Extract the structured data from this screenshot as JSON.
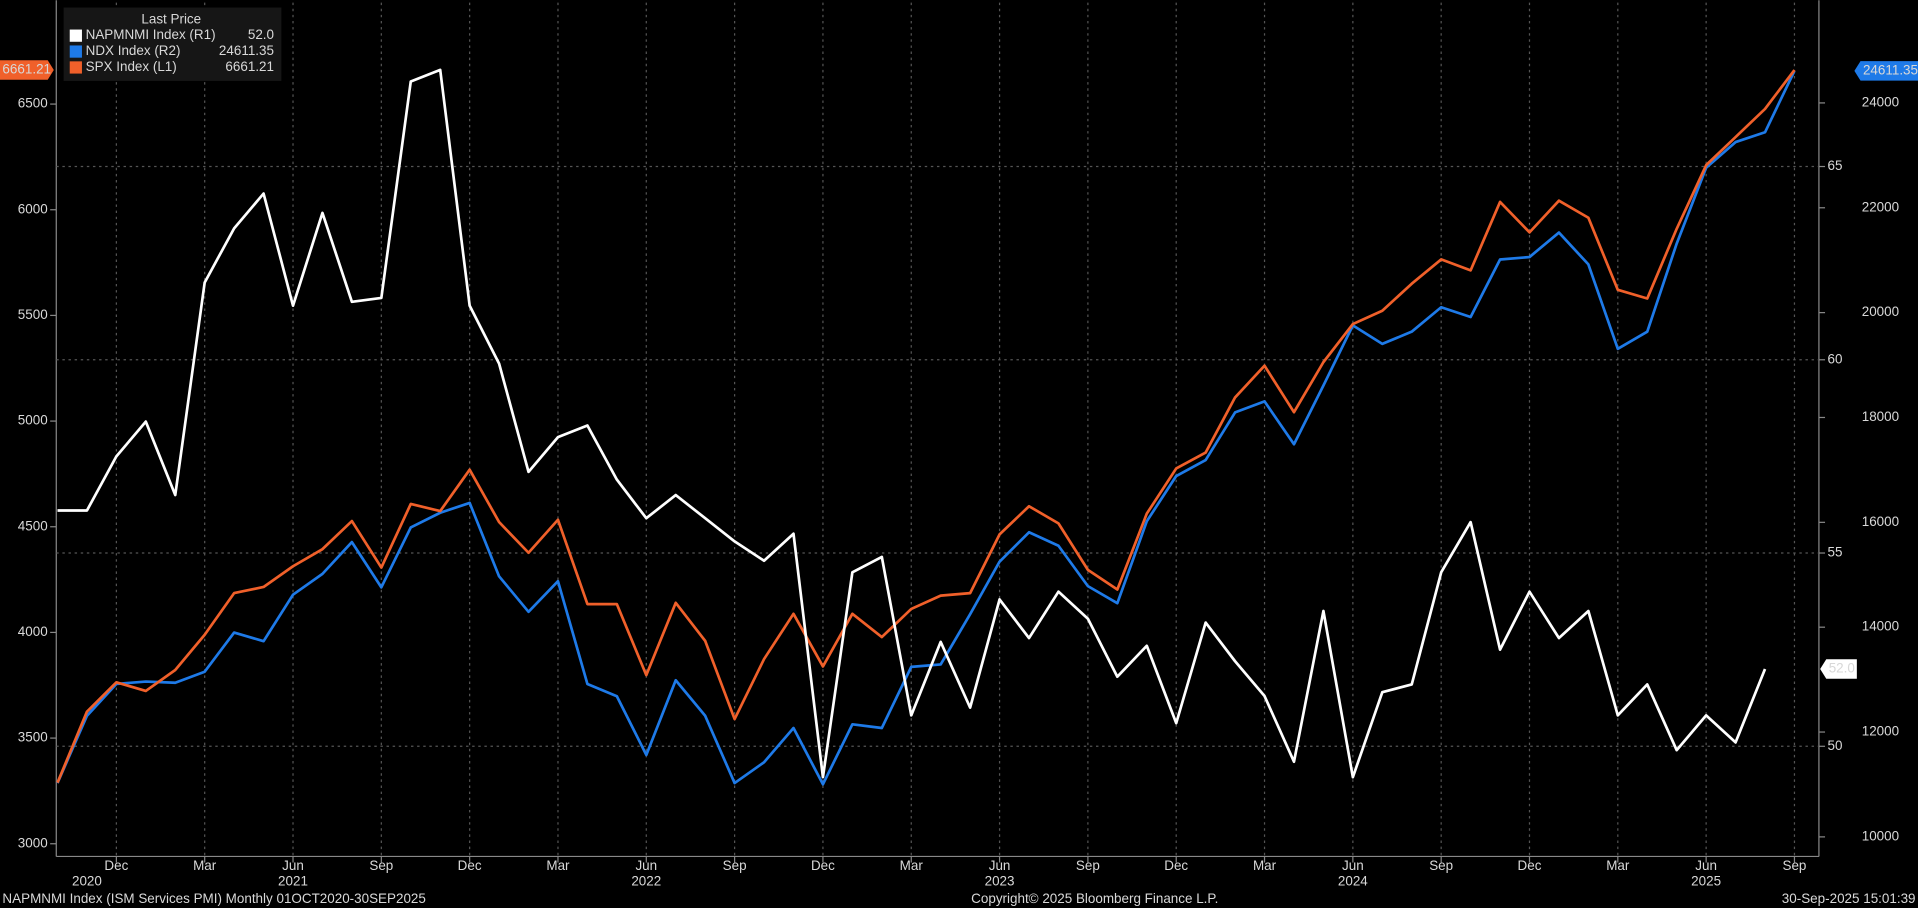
{
  "chart_data": {
    "type": "line",
    "legend_title": "Last Price",
    "footer_left": "NAPMNMI Index (ISM Services PMI)  Monthly 01OCT2020-30SEP2025",
    "footer_center": "Copyright© 2025 Bloomberg Finance L.P.",
    "footer_right": "30-Sep-2025 15:01:39",
    "x": [
      "2020-10",
      "2020-11",
      "2020-12",
      "2021-01",
      "2021-02",
      "2021-03",
      "2021-04",
      "2021-05",
      "2021-06",
      "2021-07",
      "2021-08",
      "2021-09",
      "2021-10",
      "2021-11",
      "2021-12",
      "2022-01",
      "2022-02",
      "2022-03",
      "2022-04",
      "2022-05",
      "2022-06",
      "2022-07",
      "2022-08",
      "2022-09",
      "2022-10",
      "2022-11",
      "2022-12",
      "2023-01",
      "2023-02",
      "2023-03",
      "2023-04",
      "2023-05",
      "2023-06",
      "2023-07",
      "2023-08",
      "2023-09",
      "2023-10",
      "2023-11",
      "2023-12",
      "2024-01",
      "2024-02",
      "2024-03",
      "2024-04",
      "2024-05",
      "2024-06",
      "2024-07",
      "2024-08",
      "2024-09",
      "2024-10",
      "2024-11",
      "2024-12",
      "2025-01",
      "2025-02",
      "2025-03",
      "2025-04",
      "2025-05",
      "2025-06",
      "2025-07",
      "2025-08",
      "2025-09"
    ],
    "xticks": [
      {
        "value": "2020-12",
        "label": "Dec"
      },
      {
        "value": "2021-03",
        "label": "Mar"
      },
      {
        "value": "2021-06",
        "label": "Jun"
      },
      {
        "value": "2021-09",
        "label": "Sep"
      },
      {
        "value": "2021-12",
        "label": "Dec"
      },
      {
        "value": "2022-03",
        "label": "Mar"
      },
      {
        "value": "2022-06",
        "label": "Jun"
      },
      {
        "value": "2022-09",
        "label": "Sep"
      },
      {
        "value": "2022-12",
        "label": "Dec"
      },
      {
        "value": "2023-03",
        "label": "Mar"
      },
      {
        "value": "2023-06",
        "label": "Jun"
      },
      {
        "value": "2023-09",
        "label": "Sep"
      },
      {
        "value": "2023-12",
        "label": "Dec"
      },
      {
        "value": "2024-03",
        "label": "Mar"
      },
      {
        "value": "2024-06",
        "label": "Jun"
      },
      {
        "value": "2024-09",
        "label": "Sep"
      },
      {
        "value": "2024-12",
        "label": "Dec"
      },
      {
        "value": "2025-03",
        "label": "Mar"
      },
      {
        "value": "2025-06",
        "label": "Jun"
      },
      {
        "value": "2025-09",
        "label": "Sep"
      }
    ],
    "xyears": [
      {
        "value": "2020-11",
        "label": "2020"
      },
      {
        "value": "2021-06",
        "label": "2021"
      },
      {
        "value": "2022-06",
        "label": "2022"
      },
      {
        "value": "2023-06",
        "label": "2023"
      },
      {
        "value": "2024-06",
        "label": "2024"
      },
      {
        "value": "2025-06",
        "label": "2025"
      }
    ],
    "ylim": [
      2940,
      6980
    ],
    "yticks": [
      3000,
      3500,
      4000,
      4500,
      5000,
      5500,
      6000,
      6500
    ],
    "y2lim": [
      9627,
      25913
    ],
    "y2ticks": [
      10000,
      12000,
      14000,
      16000,
      18000,
      20000,
      22000,
      24000
    ],
    "y3lim": [
      47.15,
      69.24
    ],
    "y3ticks": [
      50,
      55,
      60,
      65
    ],
    "grid": true,
    "series": [
      {
        "name": "NAPMNMI Index (R1)",
        "color": "#ffffff",
        "axis": "y3",
        "last_label": "52.0",
        "values": [
          56.1,
          56.1,
          57.5,
          58.4,
          56.5,
          62.0,
          63.4,
          64.3,
          61.4,
          63.8,
          61.5,
          61.6,
          67.2,
          67.5,
          61.4,
          59.9,
          57.1,
          58.0,
          58.3,
          56.9,
          55.9,
          56.5,
          55.9,
          55.3,
          54.8,
          55.5,
          49.2,
          54.5,
          54.9,
          50.8,
          52.7,
          51.0,
          53.8,
          52.8,
          54.0,
          53.3,
          51.8,
          52.6,
          50.6,
          53.2,
          52.2,
          51.3,
          49.6,
          53.5,
          49.2,
          51.4,
          51.6,
          54.5,
          55.8,
          52.5,
          54.0,
          52.8,
          53.5,
          50.8,
          51.6,
          49.9,
          50.8,
          50.1,
          52.0,
          null
        ]
      },
      {
        "name": "NDX Index (R2)",
        "color": "#1e7ae8",
        "axis": "y2",
        "last_label": "24611.35",
        "values": [
          11027,
          12310,
          12917,
          12963,
          12940,
          13150,
          13897,
          13733,
          14620,
          15017,
          15623,
          14760,
          15903,
          16183,
          16370,
          14970,
          14293,
          14877,
          12917,
          12683,
          11563,
          12987,
          12310,
          11027,
          11423,
          12077,
          11003,
          12147,
          12077,
          13243,
          13290,
          14247,
          15250,
          15810,
          15553,
          14783,
          14457,
          16020,
          16883,
          17187,
          18097,
          18307,
          17490,
          18610,
          19757,
          19403,
          19637,
          20103,
          19917,
          21013,
          21060,
          21527,
          20920,
          19310,
          19637,
          21317,
          22763,
          23253,
          23440,
          24611.35
        ]
      },
      {
        "name": "SPX Index (L1)",
        "color": "#f0602a",
        "axis": "y",
        "last_label": "6661.21",
        "values": [
          3289,
          3625,
          3764,
          3723,
          3822,
          3989,
          4186,
          4215,
          4313,
          4394,
          4527,
          4307,
          4608,
          4574,
          4770,
          4522,
          4377,
          4533,
          4134,
          4134,
          3798,
          4140,
          3960,
          3590,
          3874,
          4088,
          3839,
          4088,
          3978,
          4111,
          4174,
          4186,
          4464,
          4597,
          4516,
          4296,
          4203,
          4562,
          4776,
          4851,
          5112,
          5262,
          5042,
          5279,
          5459,
          5522,
          5650,
          5765,
          5713,
          6037,
          5893,
          6043,
          5962,
          5621,
          5580,
          5910,
          6211,
          6344,
          6477,
          6661.21
        ]
      }
    ]
  }
}
